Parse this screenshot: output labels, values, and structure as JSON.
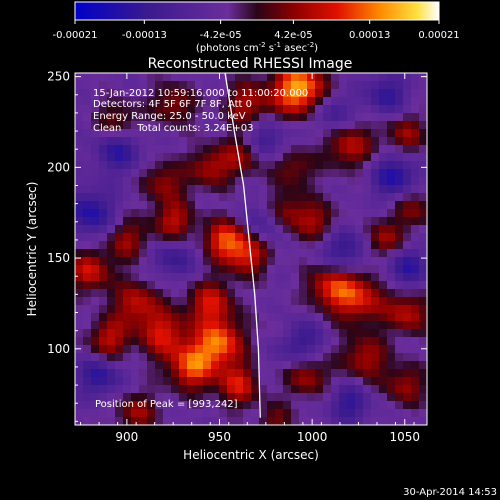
{
  "chart_data": {
    "type": "heatmap",
    "title": "Reconstructed RHESSI Image",
    "xlabel": "Heliocentric X (arcsec)",
    "ylabel": "Heliocentric Y (arcsec)",
    "xlim": [
      872,
      1062
    ],
    "ylim": [
      58,
      252
    ],
    "x_ticks": [
      900,
      950,
      1000,
      1050
    ],
    "y_ticks": [
      100,
      150,
      200,
      250
    ],
    "colorbar": {
      "ticks": [
        -0.00021,
        -0.00013,
        -4.2e-05,
        4.2e-05,
        0.00013,
        0.00021
      ],
      "tick_labels": [
        "-0.00021",
        "-0.00013",
        "-4.2e-05",
        "4.2e-05",
        "0.00013",
        "0.00021"
      ],
      "unit_prefix": "(photons cm",
      "unit_mid": " s",
      "unit_mid2": " asec",
      "unit_suffix": ")",
      "sup1": "-2",
      "sup2": "-1",
      "sup3": "-2",
      "range": [
        -0.00021,
        0.00021
      ]
    },
    "annotations": {
      "line1": "15-Jan-2012 10:59:16.000 to 11:00:20.000",
      "line2": "Detectors: 4F 5F 6F 7F 8F, Att 0",
      "line3": "Energy Range: 25.0 - 50.0 keV",
      "line4": "Clean     Total counts: 3.24E+03",
      "peak": "Position of Peak = [993,242]"
    },
    "peak_position": [
      993,
      242
    ],
    "limb_curve": [
      [
        953,
        252
      ],
      [
        958,
        220
      ],
      [
        963,
        190
      ],
      [
        966,
        160
      ],
      [
        969,
        130
      ],
      [
        971,
        100
      ],
      [
        972,
        62
      ]
    ],
    "hotspots": [
      {
        "x": 993,
        "y": 243,
        "amp": 1.0,
        "s": 10
      },
      {
        "x": 1020,
        "y": 212,
        "amp": 0.55,
        "s": 9
      },
      {
        "x": 1026,
        "y": 128,
        "amp": 0.6,
        "s": 10
      },
      {
        "x": 1010,
        "y": 134,
        "amp": 0.6,
        "s": 9
      },
      {
        "x": 1052,
        "y": 120,
        "amp": 0.55,
        "s": 8
      },
      {
        "x": 1038,
        "y": 160,
        "amp": 0.5,
        "s": 8
      },
      {
        "x": 1050,
        "y": 218,
        "amp": 0.45,
        "s": 8
      },
      {
        "x": 1055,
        "y": 178,
        "amp": 0.4,
        "s": 8
      },
      {
        "x": 1028,
        "y": 95,
        "amp": 0.5,
        "s": 9
      },
      {
        "x": 1050,
        "y": 80,
        "amp": 0.45,
        "s": 8
      },
      {
        "x": 997,
        "y": 85,
        "amp": 0.5,
        "s": 8
      },
      {
        "x": 985,
        "y": 108,
        "amp": 0.45,
        "s": 8
      },
      {
        "x": 985,
        "y": 175,
        "amp": 0.5,
        "s": 8
      },
      {
        "x": 1003,
        "y": 170,
        "amp": 0.45,
        "s": 8
      },
      {
        "x": 990,
        "y": 200,
        "amp": 0.4,
        "s": 8
      },
      {
        "x": 965,
        "y": 235,
        "amp": 0.5,
        "s": 9
      },
      {
        "x": 963,
        "y": 207,
        "amp": 0.45,
        "s": 8
      },
      {
        "x": 945,
        "y": 200,
        "amp": 0.5,
        "s": 8
      },
      {
        "x": 953,
        "y": 160,
        "amp": 0.7,
        "s": 8
      },
      {
        "x": 965,
        "y": 152,
        "amp": 0.6,
        "s": 8
      },
      {
        "x": 945,
        "y": 125,
        "amp": 0.6,
        "s": 9
      },
      {
        "x": 950,
        "y": 103,
        "amp": 0.8,
        "s": 9
      },
      {
        "x": 935,
        "y": 90,
        "amp": 0.75,
        "s": 9
      },
      {
        "x": 960,
        "y": 80,
        "amp": 0.6,
        "s": 8
      },
      {
        "x": 920,
        "y": 108,
        "amp": 0.6,
        "s": 9
      },
      {
        "x": 905,
        "y": 125,
        "amp": 0.55,
        "s": 9
      },
      {
        "x": 890,
        "y": 105,
        "amp": 0.55,
        "s": 8
      },
      {
        "x": 880,
        "y": 143,
        "amp": 0.6,
        "s": 8
      },
      {
        "x": 900,
        "y": 160,
        "amp": 0.45,
        "s": 8
      },
      {
        "x": 925,
        "y": 170,
        "amp": 0.55,
        "s": 8
      },
      {
        "x": 920,
        "y": 192,
        "amp": 0.45,
        "s": 8
      },
      {
        "x": 895,
        "y": 225,
        "amp": 0.45,
        "s": 8
      },
      {
        "x": 925,
        "y": 235,
        "amp": 0.45,
        "s": 8
      },
      {
        "x": 905,
        "y": 65,
        "amp": 0.45,
        "s": 8
      },
      {
        "x": 980,
        "y": 60,
        "amp": 0.35,
        "s": 7
      }
    ],
    "coldspots": [
      {
        "x": 990,
        "y": 105,
        "amp": -0.7,
        "s": 9
      },
      {
        "x": 1045,
        "y": 195,
        "amp": -0.55,
        "s": 9
      },
      {
        "x": 1018,
        "y": 155,
        "amp": -0.5,
        "s": 9
      },
      {
        "x": 1050,
        "y": 145,
        "amp": -0.5,
        "s": 8
      },
      {
        "x": 880,
        "y": 175,
        "amp": -0.55,
        "s": 9
      },
      {
        "x": 895,
        "y": 210,
        "amp": -0.5,
        "s": 9
      },
      {
        "x": 885,
        "y": 85,
        "amp": -0.5,
        "s": 8
      },
      {
        "x": 975,
        "y": 215,
        "amp": -0.45,
        "s": 8
      },
      {
        "x": 975,
        "y": 170,
        "amp": -0.4,
        "s": 8
      },
      {
        "x": 1010,
        "y": 230,
        "amp": -0.4,
        "s": 8
      },
      {
        "x": 1040,
        "y": 240,
        "amp": -0.45,
        "s": 8
      },
      {
        "x": 925,
        "y": 150,
        "amp": -0.4,
        "s": 8
      },
      {
        "x": 1020,
        "y": 70,
        "amp": -0.45,
        "s": 8
      }
    ]
  },
  "footer": {
    "timestamp": "30-Apr-2014 14:53"
  }
}
